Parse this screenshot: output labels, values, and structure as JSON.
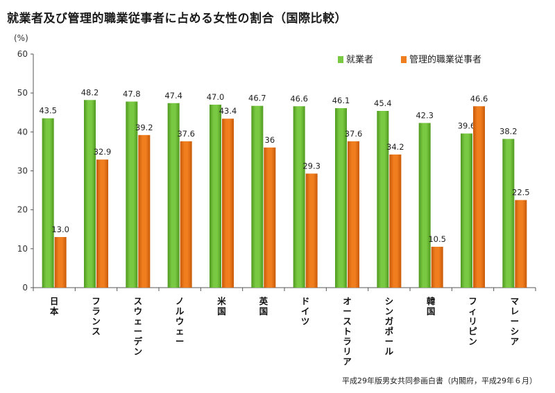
{
  "title": "就業者及び管理的職業従事者に占める女性の割合（国際比較）",
  "unit": "(%)",
  "source": "平成29年版男女共同参画白書（内閣府，平成29年６月）",
  "colors": {
    "employed": "#7ac943",
    "managerial": "#f07d1e"
  },
  "chart_data": {
    "type": "bar",
    "categories": [
      "日本",
      "フランス",
      "スウェーデン",
      "ノルウェー",
      "米国",
      "英国",
      "ドイツ",
      "オーストラリア",
      "シンガポール",
      "韓国",
      "フィリピン",
      "マレーシア"
    ],
    "series": [
      {
        "name": "就業者",
        "values": [
          43.5,
          48.2,
          47.8,
          47.4,
          47.0,
          46.7,
          46.6,
          46.1,
          45.4,
          42.3,
          39.6,
          38.2
        ],
        "labels": [
          "43.5",
          "48.2",
          "47.8",
          "47.4",
          "47.0",
          "46.7",
          "46.6",
          "46.1",
          "45.4",
          "42.3",
          "39.6",
          "38.2"
        ]
      },
      {
        "name": "管理的職業従事者",
        "values": [
          13.0,
          32.9,
          39.2,
          37.6,
          43.4,
          36,
          29.3,
          37.6,
          34.2,
          10.5,
          46.6,
          22.5
        ],
        "labels": [
          "13.0",
          "32.9",
          "39.2",
          "37.6",
          "43.4",
          "36",
          "29.3",
          "37.6",
          "34.2",
          "10.5",
          "46.6",
          "22.5"
        ]
      }
    ],
    "ylim": [
      0,
      60
    ],
    "yticks": [
      "0",
      "10",
      "20",
      "30",
      "40",
      "50",
      "60"
    ],
    "legend": "top-right",
    "grid": false
  }
}
